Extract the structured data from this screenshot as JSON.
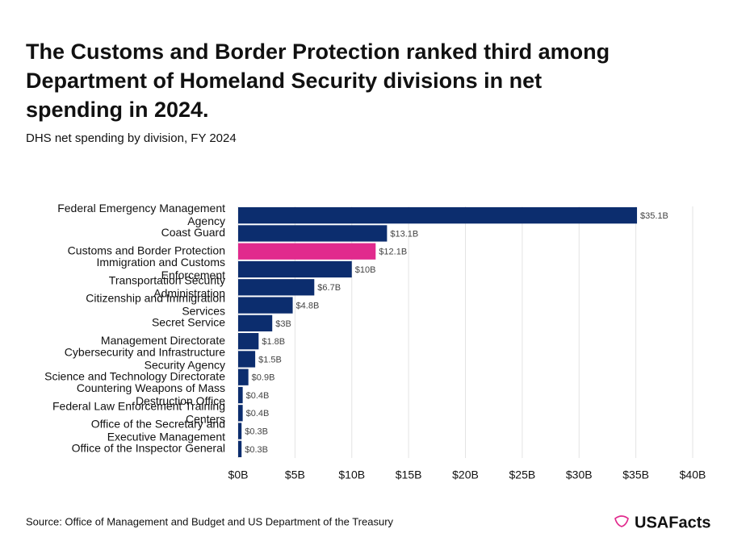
{
  "chart_data": {
    "type": "hbar",
    "title": "The Customs and Border Protection ranked third among Department of Homeland Security divisions in net spending in 2024.",
    "subtitle": "DHS net spending by division, FY 2024",
    "source": "Source: Office of Management and Budget and US Department of the Treasury",
    "logo": "USAFacts",
    "categories": [
      "Federal Emergency Management Agency",
      "Coast Guard",
      "Customs and Border Protection",
      "Immigration and Customs Enforcement",
      "Transportation Security Administration",
      "Citizenship and Immigration Services",
      "Secret Service",
      "Management Directorate",
      "Cybersecurity and Infrastructure Security Agency",
      "Science and Technology Directorate",
      "Countering Weapons of Mass Destruction Office",
      "Federal Law Enforcement Training Centers",
      "Office of the Secretary and Executive Management",
      "Office of the Inspector General"
    ],
    "values": [
      35.1,
      13.1,
      12.1,
      10,
      6.7,
      4.8,
      3,
      1.8,
      1.5,
      0.9,
      0.4,
      0.4,
      0.3,
      0.3
    ],
    "value_labels": [
      "$35.1B",
      "$13.1B",
      "$12.1B",
      "$10B",
      "$6.7B",
      "$4.8B",
      "$3B",
      "$1.8B",
      "$1.5B",
      "$0.9B",
      "$0.4B",
      "$0.4B",
      "$0.3B",
      "$0.3B"
    ],
    "colors": [
      "#0c2d6e",
      "#0c2d6e",
      "#e12a8d",
      "#0c2d6e",
      "#0c2d6e",
      "#0c2d6e",
      "#0c2d6e",
      "#0c2d6e",
      "#0c2d6e",
      "#0c2d6e",
      "#0c2d6e",
      "#0c2d6e",
      "#0c2d6e",
      "#0c2d6e"
    ],
    "xlim": [
      0,
      40
    ],
    "xticks": [
      {
        "value": 0,
        "label": "$0B"
      },
      {
        "value": 5,
        "label": "$5B"
      },
      {
        "value": 10,
        "label": "$10B"
      },
      {
        "value": 15,
        "label": "$15B"
      },
      {
        "value": 20,
        "label": "$20B"
      },
      {
        "value": 25,
        "label": "$25B"
      },
      {
        "value": 30,
        "label": "$30B"
      },
      {
        "value": 35,
        "label": "$35B"
      },
      {
        "value": 40,
        "label": "$40B"
      }
    ],
    "grid": true
  }
}
